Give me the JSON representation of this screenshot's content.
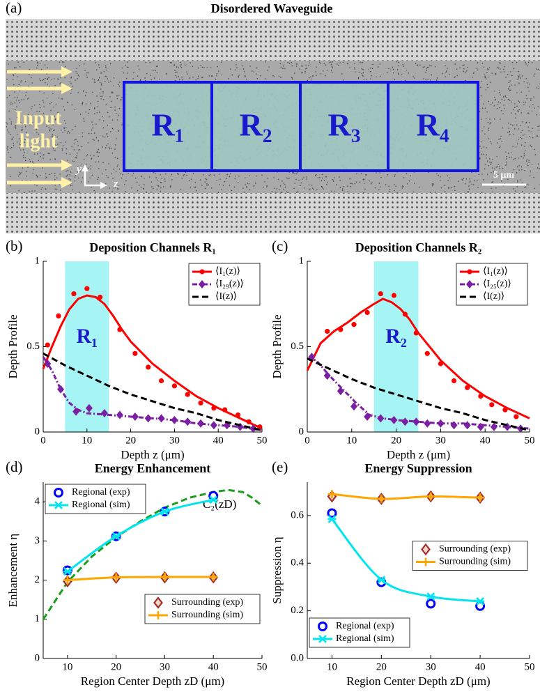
{
  "waveguide": {
    "panel_label": "(a)",
    "title": "Disordered Waveguide",
    "regions": [
      "R₁",
      "R₂",
      "R₃",
      "R₄"
    ],
    "input_label": [
      "Input",
      "light"
    ],
    "axis_labels": [
      "y",
      "z"
    ],
    "scale_bar": "5 μm"
  },
  "chart_data": [
    {
      "type": "line",
      "panel_label": "(b)",
      "title": "Deposition Channels R₁",
      "xlabel": "Depth z (μm)",
      "ylabel": "Depth Profile",
      "xlim": [
        0,
        50
      ],
      "ylim": [
        0,
        1
      ],
      "xticks": [
        0,
        10,
        20,
        30,
        40,
        50
      ],
      "yticks": [
        0,
        0.5,
        1
      ],
      "shaded_region": {
        "x": [
          5,
          15
        ],
        "label": "R₁",
        "color": "#a6f4f4"
      },
      "series": [
        {
          "name": "⟨I₁(z)⟩",
          "color": "#ff0000",
          "marker": "dot",
          "line": "solid",
          "legend": "upper right",
          "x": [
            1,
            3.5,
            7,
            10,
            13,
            17.5,
            21,
            24,
            27,
            30,
            33,
            36,
            39,
            41.5,
            44.5,
            47,
            49.5
          ],
          "values": [
            0.51,
            0.68,
            0.81,
            0.84,
            0.79,
            0.6,
            0.46,
            0.38,
            0.3,
            0.27,
            0.22,
            0.17,
            0.14,
            0.13,
            0.1,
            0.06,
            0.03
          ],
          "fit_x": [
            0,
            2,
            4,
            6,
            8,
            10,
            12,
            14,
            16,
            18,
            20,
            25,
            30,
            35,
            40,
            45,
            50
          ],
          "fit_values": [
            0.37,
            0.5,
            0.62,
            0.72,
            0.78,
            0.8,
            0.79,
            0.75,
            0.68,
            0.6,
            0.53,
            0.4,
            0.3,
            0.21,
            0.14,
            0.08,
            0.02
          ]
        },
        {
          "name": "⟨I₂₉(z)⟩",
          "color": "#7b1fa2",
          "marker": "diamond",
          "line": "dashdot",
          "legend": "upper right",
          "x": [
            1,
            4,
            7.5,
            10.5,
            14,
            17.5,
            21,
            24,
            27,
            30,
            33,
            36,
            39,
            42,
            45,
            48
          ],
          "values": [
            0.4,
            0.25,
            0.12,
            0.14,
            0.11,
            0.1,
            0.09,
            0.08,
            0.08,
            0.07,
            0.06,
            0.05,
            0.04,
            0.04,
            0.03,
            0.02
          ],
          "fit_x": [
            0,
            2,
            4,
            6,
            8,
            10,
            15,
            20,
            25,
            30,
            35,
            40,
            45,
            50
          ],
          "fit_values": [
            0.44,
            0.36,
            0.25,
            0.17,
            0.13,
            0.11,
            0.1,
            0.09,
            0.08,
            0.07,
            0.05,
            0.04,
            0.03,
            0.01
          ]
        },
        {
          "name": "⟨I(z)⟩",
          "color": "#000000",
          "line": "dashed",
          "legend": "upper right",
          "x": [
            0,
            5,
            10,
            15,
            20,
            25,
            30,
            35,
            40,
            45,
            50
          ],
          "values": [
            0.46,
            0.39,
            0.33,
            0.27,
            0.22,
            0.18,
            0.14,
            0.11,
            0.07,
            0.04,
            0.01
          ]
        }
      ]
    },
    {
      "type": "line",
      "panel_label": "(c)",
      "title": "Deposition Channels R₂",
      "xlabel": "Depth z (μm)",
      "ylabel": "Depth Profile",
      "xlim": [
        0,
        50
      ],
      "ylim": [
        0,
        1
      ],
      "xticks": [
        0,
        10,
        20,
        30,
        40,
        50
      ],
      "yticks": [
        0,
        0.5,
        1
      ],
      "shaded_region": {
        "x": [
          15,
          25
        ],
        "label": "R₂",
        "color": "#a6f4f4"
      },
      "series": [
        {
          "name": "⟨I₁(z)⟩",
          "color": "#ff0000",
          "marker": "dot",
          "line": "solid",
          "legend": "upper right",
          "x": [
            1,
            4.5,
            7.5,
            10.5,
            13.5,
            16.5,
            19.5,
            22,
            24.5,
            27,
            30,
            33,
            36,
            39,
            41.5,
            44.5,
            47
          ],
          "values": [
            0.44,
            0.59,
            0.6,
            0.63,
            0.7,
            0.81,
            0.8,
            0.69,
            0.58,
            0.46,
            0.4,
            0.3,
            0.26,
            0.21,
            0.16,
            0.13,
            0.09
          ],
          "fit_x": [
            0,
            3,
            6,
            9,
            12,
            15,
            17,
            19,
            21,
            23,
            25,
            30,
            35,
            40,
            45,
            50
          ],
          "fit_values": [
            0.36,
            0.52,
            0.59,
            0.64,
            0.7,
            0.75,
            0.78,
            0.76,
            0.72,
            0.66,
            0.58,
            0.42,
            0.3,
            0.21,
            0.14,
            0.08
          ]
        },
        {
          "name": "⟨I₂₅(z)⟩",
          "color": "#7b1fa2",
          "marker": "diamond",
          "line": "dashdot",
          "legend": "upper right",
          "x": [
            1,
            4.5,
            7.5,
            10.5,
            13.5,
            16.5,
            19.5,
            22,
            24.5,
            27,
            30,
            33,
            36,
            39,
            42,
            45,
            48
          ],
          "values": [
            0.44,
            0.33,
            0.24,
            0.15,
            0.09,
            0.08,
            0.07,
            0.06,
            0.06,
            0.05,
            0.05,
            0.04,
            0.04,
            0.03,
            0.03,
            0.03,
            0.02
          ],
          "fit_x": [
            0,
            2,
            5,
            8,
            11,
            14,
            17,
            20,
            25,
            30,
            35,
            40,
            45,
            50
          ],
          "fit_values": [
            0.43,
            0.42,
            0.33,
            0.25,
            0.17,
            0.1,
            0.08,
            0.07,
            0.06,
            0.05,
            0.05,
            0.04,
            0.03,
            0.02
          ]
        },
        {
          "name": "⟨I(z)⟩",
          "color": "#000000",
          "line": "dashed",
          "legend": "upper right",
          "x": [
            0,
            5,
            10,
            15,
            20,
            25,
            30,
            35,
            40,
            45,
            50
          ],
          "values": [
            0.43,
            0.37,
            0.31,
            0.26,
            0.22,
            0.18,
            0.14,
            0.11,
            0.07,
            0.04,
            0.01
          ]
        }
      ]
    },
    {
      "type": "line",
      "panel_label": "(d)",
      "title": "Energy Enhancement",
      "xlabel": "Region Center Depth zD (μm)",
      "ylabel": "Enhancement η",
      "xlim": [
        5,
        50
      ],
      "ylim": [
        0,
        4.5
      ],
      "xticks": [
        10,
        20,
        30,
        40,
        50
      ],
      "yticks": [
        0,
        1,
        2,
        3,
        4
      ],
      "series": [
        {
          "name": "C₂(zD)",
          "color": "#1a9e1a",
          "line": "dashed",
          "legend": "inline",
          "x": [
            5,
            10,
            15,
            20,
            25,
            30,
            35,
            40,
            43,
            46,
            48,
            50
          ],
          "values": [
            1.0,
            1.95,
            2.6,
            3.1,
            3.5,
            3.85,
            4.1,
            4.25,
            4.3,
            4.25,
            4.1,
            3.9
          ]
        },
        {
          "name": "Regional (exp)",
          "color": "#0000ff",
          "marker": "open-circle",
          "legend": "upper left",
          "x": [
            10,
            20,
            30,
            40
          ],
          "values": [
            2.25,
            3.12,
            3.75,
            4.15
          ]
        },
        {
          "name": "Regional (sim)",
          "color": "#00e5ee",
          "marker": "x",
          "line": "smooth",
          "legend": "upper left",
          "x": [
            10,
            20,
            30,
            40
          ],
          "values": [
            2.22,
            3.12,
            3.75,
            4.05
          ]
        },
        {
          "name": "Surrounding (exp)",
          "color": "#a52a2a",
          "marker": "open-diamond",
          "legend": "lower right",
          "x": [
            10,
            20,
            30,
            40
          ],
          "values": [
            1.97,
            2.06,
            2.07,
            2.07
          ]
        },
        {
          "name": "Surrounding (sim)",
          "color": "#ffa500",
          "marker": "plus",
          "line": "smooth",
          "legend": "lower right",
          "x": [
            10,
            20,
            30,
            40
          ],
          "values": [
            2.0,
            2.07,
            2.08,
            2.08
          ]
        }
      ]
    },
    {
      "type": "line",
      "panel_label": "(e)",
      "title": "Energy Suppression",
      "xlabel": "Region Center Depth zD (μm)",
      "ylabel": "Suppression η",
      "xlim": [
        5,
        50
      ],
      "ylim": [
        0,
        0.74
      ],
      "xticks": [
        10,
        20,
        30,
        40,
        50
      ],
      "yticks": [
        {
          "value": 0,
          "label": "0.0"
        },
        0.2,
        0.4,
        0.6
      ],
      "series": [
        {
          "name": "Surrounding (exp)",
          "color": "#a52a2a",
          "marker": "open-diamond",
          "legend": "center right",
          "x": [
            10,
            20,
            30,
            40
          ],
          "values": [
            0.68,
            0.67,
            0.68,
            0.675
          ]
        },
        {
          "name": "Surrounding (sim)",
          "color": "#ffa500",
          "marker": "plus",
          "line": "smooth",
          "legend": "center right",
          "x": [
            10,
            20,
            30,
            40
          ],
          "values": [
            0.69,
            0.67,
            0.68,
            0.675
          ]
        },
        {
          "name": "Regional (exp)",
          "color": "#0000ff",
          "marker": "open-circle",
          "legend": "lower left",
          "x": [
            10,
            20,
            30,
            40
          ],
          "values": [
            0.61,
            0.32,
            0.23,
            0.22
          ]
        },
        {
          "name": "Regional (sim)",
          "color": "#00e5ee",
          "marker": "x",
          "line": "smooth",
          "legend": "lower left",
          "x": [
            10,
            20,
            30,
            40
          ],
          "values": [
            0.585,
            0.33,
            0.26,
            0.24
          ]
        }
      ]
    }
  ]
}
